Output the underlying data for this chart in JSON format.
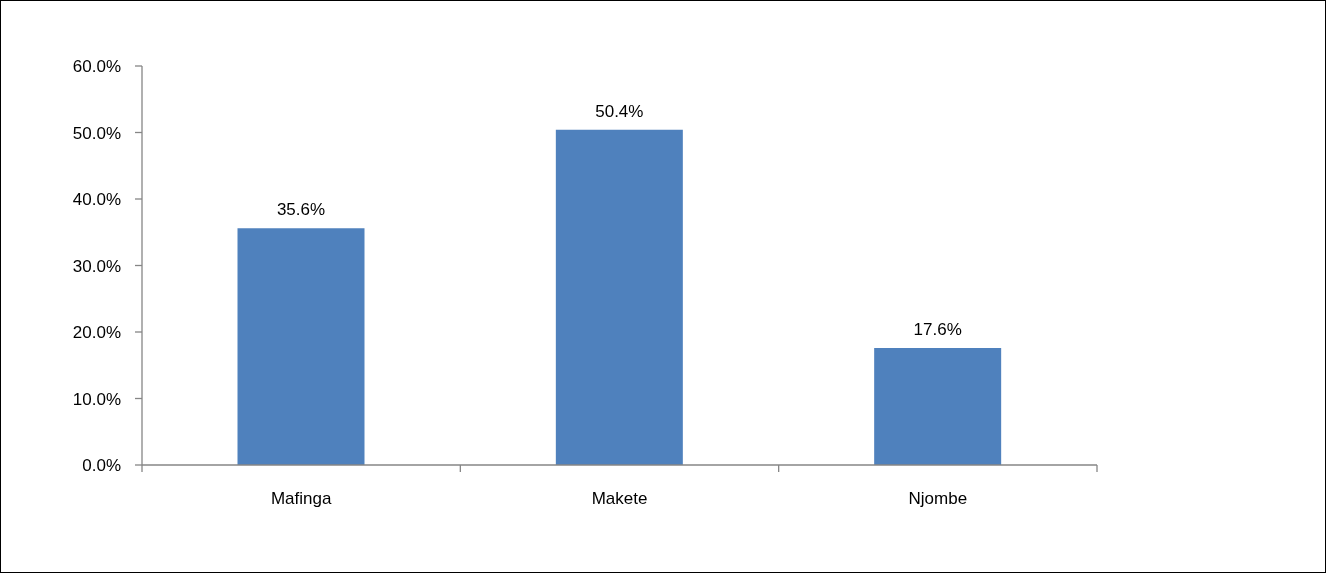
{
  "chart_data": {
    "type": "bar",
    "categories": [
      "Mafinga",
      "Makete",
      "Njombe"
    ],
    "values": [
      35.6,
      50.4,
      17.6
    ],
    "color": "#4f81bd",
    "value_labels": [
      "35.6%",
      "50.4%",
      "17.6%"
    ],
    "ylim": [
      0,
      60
    ],
    "yticks": [
      {
        "value": 0,
        "label": "0.0%"
      },
      {
        "value": 10,
        "label": "10.0%"
      },
      {
        "value": 20,
        "label": "20.0%"
      },
      {
        "value": 30,
        "label": "30.0%"
      },
      {
        "value": 40,
        "label": "40.0%"
      },
      {
        "value": 50,
        "label": "50.0%"
      },
      {
        "value": 60,
        "label": "60.0%"
      }
    ]
  }
}
